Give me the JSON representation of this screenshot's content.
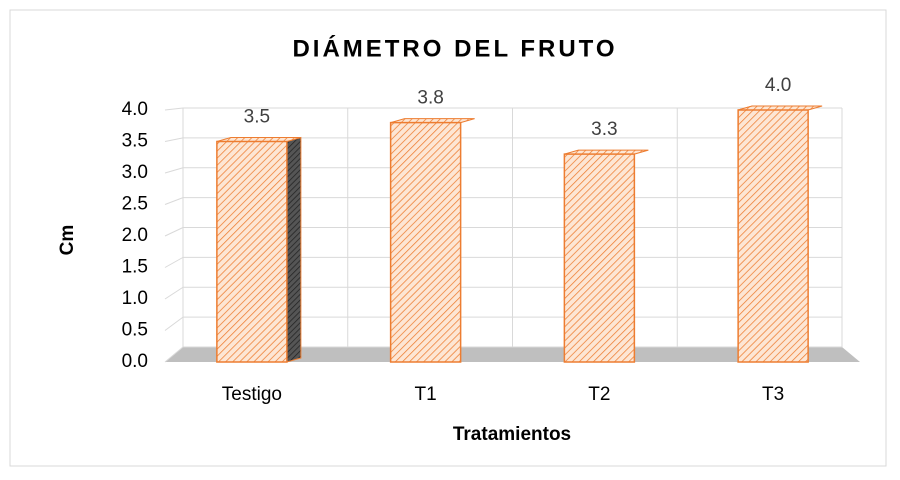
{
  "chart_data": {
    "type": "bar3d",
    "title": "DIÁMETRO DEL FRUTO",
    "x_label": "Tratamientos",
    "y_label": "Cm",
    "categories": [
      "Testigo",
      "T1",
      "T2",
      "T3"
    ],
    "values": [
      3.5,
      3.8,
      3.3,
      4.0
    ],
    "value_labels": [
      "3.5",
      "3.8",
      "3.3",
      "4.0"
    ],
    "color": "#ed7d31",
    "ylim": [
      0,
      4
    ],
    "yticks": [
      {
        "value": 0,
        "label": "0.0"
      },
      {
        "value": 0.5,
        "label": "0.5"
      },
      {
        "value": 1,
        "label": "1.0"
      },
      {
        "value": 1.5,
        "label": "1.5"
      },
      {
        "value": 2,
        "label": "2.0"
      },
      {
        "value": 2.5,
        "label": "2.5"
      },
      {
        "value": 3,
        "label": "3.0"
      },
      {
        "value": 3.5,
        "label": "3.5"
      },
      {
        "value": 4,
        "label": "4.0"
      }
    ],
    "grid": true
  }
}
